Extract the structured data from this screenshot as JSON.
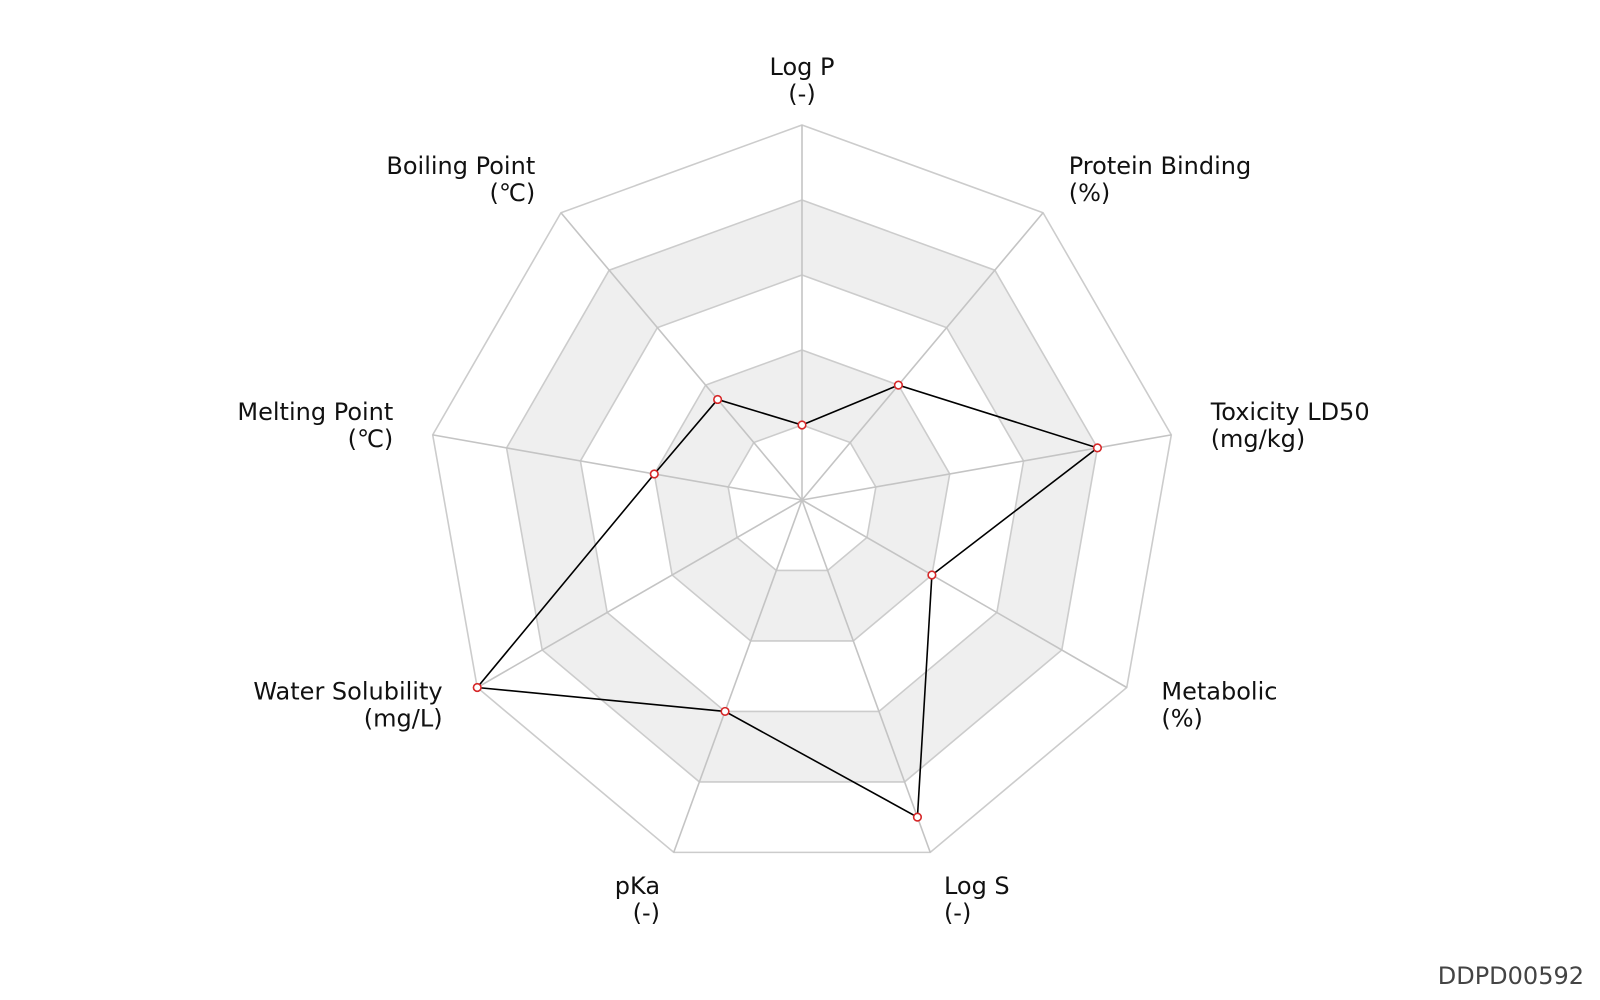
{
  "chart_data": {
    "type": "radar",
    "axes": [
      {
        "name": "Log P",
        "unit": "(-)"
      },
      {
        "name": "Protein Binding",
        "unit": "(%)"
      },
      {
        "name": "Toxicity LD50",
        "unit": "(mg/kg)"
      },
      {
        "name": "Metabolic",
        "unit": "(%)"
      },
      {
        "name": "Log S",
        "unit": "(-)"
      },
      {
        "name": "pKa",
        "unit": "(-)"
      },
      {
        "name": "Water Solubility",
        "unit": "(mg/L)"
      },
      {
        "name": "Melting Point",
        "unit": "(℃)"
      },
      {
        "name": "Boiling Point",
        "unit": "(℃)"
      }
    ],
    "values": [
      0.2,
      0.4,
      0.8,
      0.4,
      0.9,
      0.6,
      1.0,
      0.4,
      0.35
    ],
    "range": [
      0,
      1
    ],
    "ring_levels": 5,
    "alternating_ring_shading": true,
    "grid": true,
    "colors": {
      "line": "#000000",
      "point_stroke": "#d62728",
      "shade": "#efefef",
      "grid": "#cccccc"
    }
  },
  "corner_label": "DDPD00592"
}
